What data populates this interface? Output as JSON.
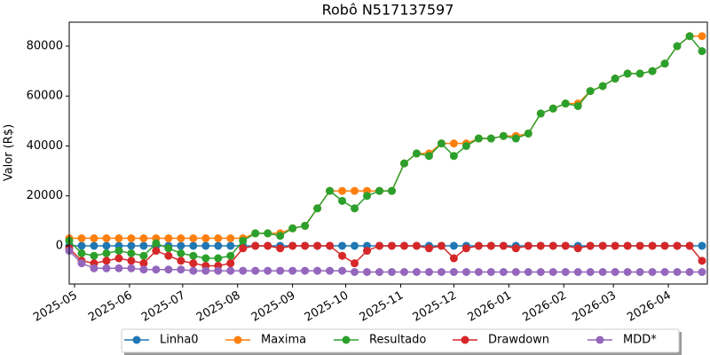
{
  "chart_data": {
    "type": "line",
    "title": "Robô N517137597",
    "y_label": "Valor (R$)",
    "x": [
      "2025-04-28",
      "2025-05-05",
      "2025-05-12",
      "2025-05-19",
      "2025-05-26",
      "2025-06-02",
      "2025-06-09",
      "2025-06-16",
      "2025-06-23",
      "2025-06-30",
      "2025-07-07",
      "2025-07-14",
      "2025-07-21",
      "2025-07-28",
      "2025-08-04",
      "2025-08-11",
      "2025-08-18",
      "2025-08-25",
      "2025-09-01",
      "2025-09-08",
      "2025-09-15",
      "2025-09-22",
      "2025-09-29",
      "2025-10-06",
      "2025-10-13",
      "2025-10-20",
      "2025-10-27",
      "2025-11-03",
      "2025-11-10",
      "2025-11-17",
      "2025-11-24",
      "2025-12-01",
      "2025-12-08",
      "2025-12-15",
      "2025-12-22",
      "2025-12-29",
      "2026-01-05",
      "2026-01-12",
      "2026-01-19",
      "2026-01-26",
      "2026-02-02",
      "2026-02-09",
      "2026-02-16",
      "2026-02-23",
      "2026-03-02",
      "2026-03-09",
      "2026-03-16",
      "2026-03-23",
      "2026-03-30",
      "2026-04-06",
      "2026-04-13",
      "2026-04-20"
    ],
    "series": [
      {
        "name": "Linha0",
        "color": "#1f77b4",
        "values": [
          0,
          0,
          0,
          0,
          0,
          0,
          0,
          0,
          0,
          0,
          0,
          0,
          0,
          0,
          0,
          0,
          0,
          0,
          0,
          0,
          0,
          0,
          0,
          0,
          0,
          0,
          0,
          0,
          0,
          0,
          0,
          0,
          0,
          0,
          0,
          0,
          0,
          0,
          0,
          0,
          0,
          0,
          0,
          0,
          0,
          0,
          0,
          0,
          0,
          0,
          0,
          0
        ]
      },
      {
        "name": "Maxima",
        "color": "#ff7f0e",
        "values": [
          3000,
          3000,
          3000,
          3000,
          3000,
          3000,
          3000,
          3000,
          3000,
          3000,
          3000,
          3000,
          3000,
          3000,
          3000,
          5000,
          5000,
          5000,
          7000,
          8000,
          15000,
          22000,
          22000,
          22000,
          22000,
          22000,
          22000,
          33000,
          37000,
          37000,
          41000,
          41000,
          41000,
          43000,
          43000,
          44000,
          44000,
          45000,
          53000,
          55000,
          57000,
          57000,
          62000,
          64000,
          67000,
          69000,
          69000,
          70000,
          73000,
          80000,
          84000,
          84000
        ]
      },
      {
        "name": "Resultado",
        "color": "#2ca02c",
        "values": [
          2000,
          -3000,
          -4000,
          -3000,
          -2000,
          -3000,
          -4000,
          1000,
          -1000,
          -3000,
          -4000,
          -5000,
          -5000,
          -4000,
          2000,
          5000,
          5000,
          4000,
          7000,
          8000,
          15000,
          22000,
          18000,
          15000,
          20000,
          22000,
          22000,
          33000,
          37000,
          36000,
          41000,
          36000,
          40000,
          43000,
          43000,
          44000,
          43000,
          45000,
          53000,
          55000,
          57000,
          56000,
          62000,
          64000,
          67000,
          69000,
          69000,
          70000,
          73000,
          80000,
          84000,
          78000
        ]
      },
      {
        "name": "Drawdown",
        "color": "#d62728",
        "values": [
          -1000,
          -6000,
          -7000,
          -6000,
          -5000,
          -6000,
          -7000,
          -2000,
          -4000,
          -6000,
          -7000,
          -8000,
          -8000,
          -7000,
          -1000,
          0,
          0,
          -1000,
          0,
          0,
          0,
          0,
          -4000,
          -7000,
          -2000,
          0,
          0,
          0,
          0,
          -1000,
          0,
          -5000,
          -1000,
          0,
          0,
          0,
          -1000,
          0,
          0,
          0,
          0,
          -1000,
          0,
          0,
          0,
          0,
          0,
          0,
          0,
          0,
          0,
          -6000
        ]
      },
      {
        "name": "MDD*",
        "color": "#9467bd",
        "values": [
          -2000,
          -7000,
          -9000,
          -9000,
          -9000,
          -9000,
          -9500,
          -9500,
          -9500,
          -9500,
          -10000,
          -10000,
          -10000,
          -10000,
          -10000,
          -10000,
          -10000,
          -10000,
          -10000,
          -10000,
          -10000,
          -10000,
          -10000,
          -10500,
          -10500,
          -10500,
          -10500,
          -10500,
          -10500,
          -10500,
          -10500,
          -10500,
          -10500,
          -10500,
          -10500,
          -10500,
          -10500,
          -10500,
          -10500,
          -10500,
          -10500,
          -10500,
          -10500,
          -10500,
          -10500,
          -10500,
          -10500,
          -10500,
          -10500,
          -10500,
          -10500,
          -10500
        ]
      }
    ],
    "xlim": [
      "2025-04-28",
      "2026-04-23"
    ],
    "xticks": [
      {
        "value": "2025-05-01",
        "label": "2025-05"
      },
      {
        "value": "2025-06-01",
        "label": "2025-06"
      },
      {
        "value": "2025-07-01",
        "label": "2025-07"
      },
      {
        "value": "2025-08-01",
        "label": "2025-08"
      },
      {
        "value": "2025-09-01",
        "label": "2025-09"
      },
      {
        "value": "2025-10-01",
        "label": "2025-10"
      },
      {
        "value": "2025-11-01",
        "label": "2025-11"
      },
      {
        "value": "2025-12-01",
        "label": "2025-12"
      },
      {
        "value": "2026-01-01",
        "label": "2026-01"
      },
      {
        "value": "2026-02-01",
        "label": "2026-02"
      },
      {
        "value": "2026-03-01",
        "label": "2026-03"
      },
      {
        "value": "2026-04-01",
        "label": "2026-04"
      }
    ],
    "ylim": [
      -15300,
      89600
    ],
    "yticks": [
      0,
      20000,
      40000,
      60000,
      80000
    ],
    "grid": false,
    "legend": "lower center"
  }
}
